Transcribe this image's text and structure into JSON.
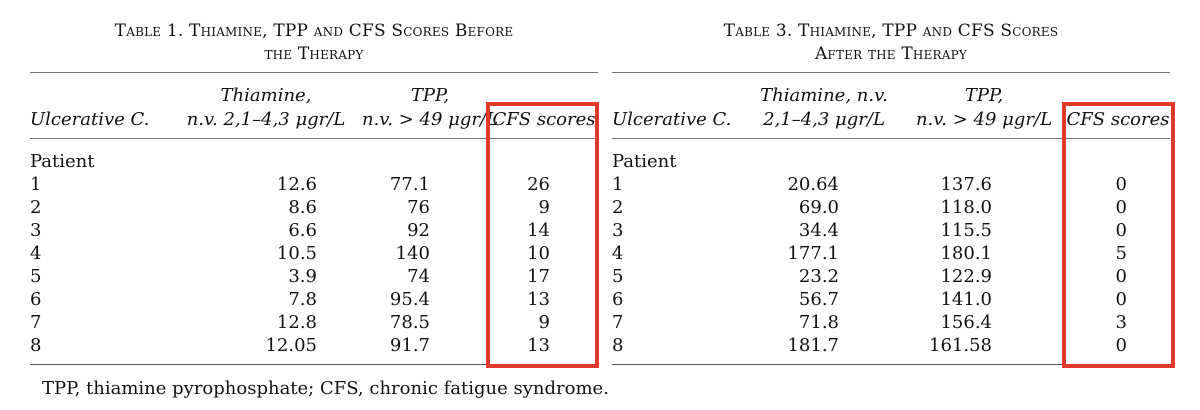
{
  "tables": [
    {
      "caption_line1": "Table 1. Thiamine, TPP and CFS Scores Before",
      "caption_line2": "the Therapy",
      "headers": {
        "c1": "Ulcerative C.",
        "c2a": "Thiamine,",
        "c2b": "n.v. 2,1–4,3 μgr/L",
        "c3a": "TPP,",
        "c3b": "n.v. > 49 μgr/L",
        "c4": "CFS scores"
      },
      "group_label": "Patient",
      "rows": [
        {
          "patient": "1",
          "thiamine": "12.6",
          "tpp": "77.1",
          "cfs": "26"
        },
        {
          "patient": "2",
          "thiamine": "8.6",
          "tpp": "76",
          "cfs": "9"
        },
        {
          "patient": "3",
          "thiamine": "6.6",
          "tpp": "92",
          "cfs": "14"
        },
        {
          "patient": "4",
          "thiamine": "10.5",
          "tpp": "140",
          "cfs": "10"
        },
        {
          "patient": "5",
          "thiamine": "3.9",
          "tpp": "74",
          "cfs": "17"
        },
        {
          "patient": "6",
          "thiamine": "7.8",
          "tpp": "95.4",
          "cfs": "13"
        },
        {
          "patient": "7",
          "thiamine": "12.8",
          "tpp": "78.5",
          "cfs": "9"
        },
        {
          "patient": "8",
          "thiamine": "12.05",
          "tpp": "91.7",
          "cfs": "13"
        }
      ]
    },
    {
      "caption_line1": "Table 3. Thiamine, TPP and CFS Scores",
      "caption_line2": "After the Therapy",
      "headers": {
        "c1": "Ulcerative C.",
        "c2a": "Thiamine, n.v.",
        "c2b": "2,1–4,3 μgr/L",
        "c3a": "TPP,",
        "c3b": "n.v. > 49 μgr/L",
        "c4": "CFS scores"
      },
      "group_label": "Patient",
      "rows": [
        {
          "patient": "1",
          "thiamine": "20.64",
          "tpp": "137.6",
          "cfs": "0"
        },
        {
          "patient": "2",
          "thiamine": "69.0",
          "tpp": "118.0",
          "cfs": "0"
        },
        {
          "patient": "3",
          "thiamine": "34.4",
          "tpp": "115.5",
          "cfs": "0"
        },
        {
          "patient": "4",
          "thiamine": "177.1",
          "tpp": "180.1",
          "cfs": "5"
        },
        {
          "patient": "5",
          "thiamine": "23.2",
          "tpp": "122.9",
          "cfs": "0"
        },
        {
          "patient": "6",
          "thiamine": "56.7",
          "tpp": "141.0",
          "cfs": "0"
        },
        {
          "patient": "7",
          "thiamine": "71.8",
          "tpp": "156.4",
          "cfs": "3"
        },
        {
          "patient": "8",
          "thiamine": "181.7",
          "tpp": "161.58",
          "cfs": "0"
        }
      ]
    }
  ],
  "footnote": "TPP, thiamine pyrophosphate; CFS, chronic fatigue syndrome.",
  "highlight_color": "#e0382b"
}
